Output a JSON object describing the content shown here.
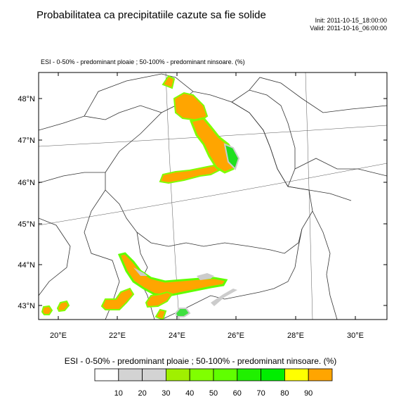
{
  "header": {
    "title": "Probabilitatea ca precipitatiile cazute sa fie solide",
    "init": "Init: 2011-10-15_18:00:00",
    "valid": "Valid: 2011-10-16_06:00:00"
  },
  "subtitle": "ESI - 0-50% - predominant ploaie ; 50-100% - predominant ninsoare.   (%)",
  "map": {
    "lat_labels": [
      "48°N",
      "47°N",
      "46°N",
      "45°N",
      "44°N",
      "43°N"
    ],
    "lon_labels": [
      "20°E",
      "22°E",
      "24°E",
      "26°E",
      "28°E",
      "30°E"
    ],
    "region": "Romania"
  },
  "legend": {
    "title": "ESI - 0-50% - predominant ploaie ; 50-100% - predominant ninsoare.  (%)",
    "colors": [
      "#ffffff",
      "#d3d3d3",
      "#d3d3d3",
      "#a0f000",
      "#80ff00",
      "#60ff00",
      "#20f000",
      "#00ee00",
      "#ffff00",
      "#ffa500"
    ],
    "tick_labels": [
      "10",
      "20",
      "30",
      "40",
      "50",
      "60",
      "70",
      "80",
      "90"
    ]
  }
}
